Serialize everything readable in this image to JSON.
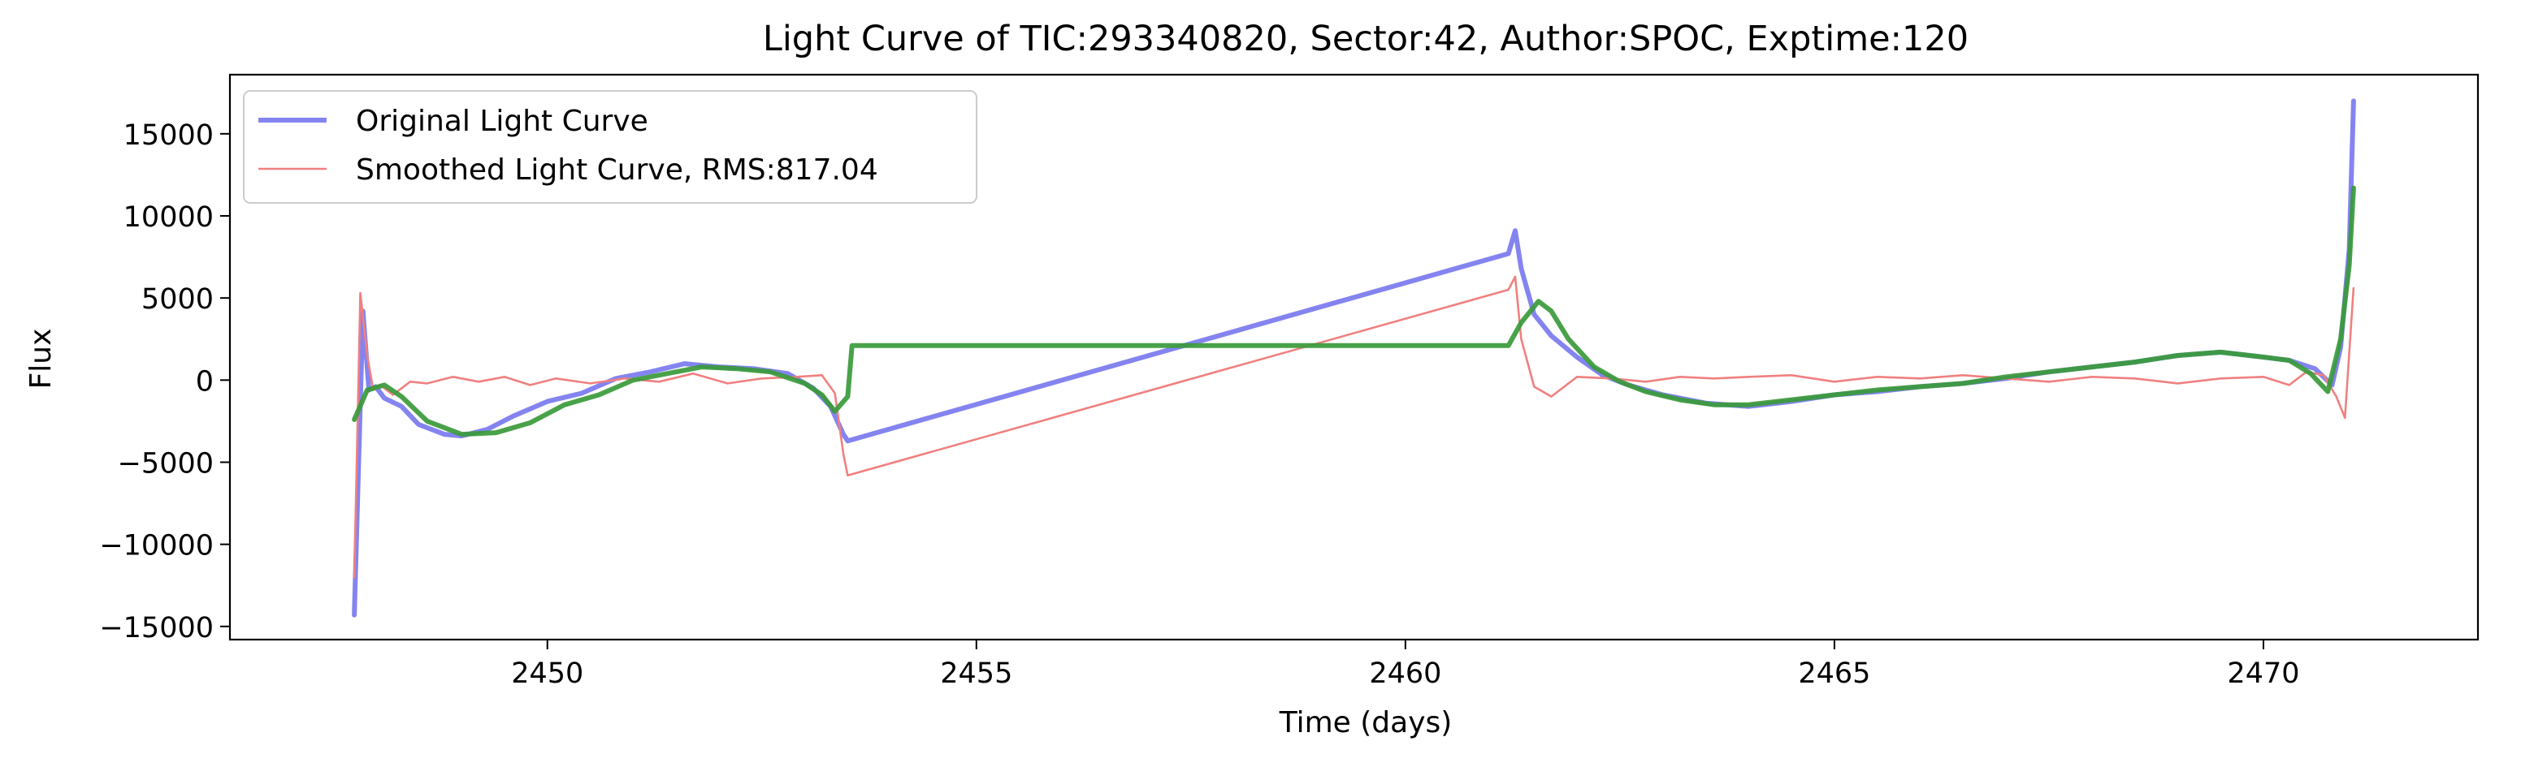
{
  "chart_data": {
    "type": "line",
    "title": "Light Curve of TIC:293340820, Sector:42, Author:SPOC, Exptime:120",
    "xlabel": "Time (days)",
    "ylabel": "Flux",
    "xlim": [
      2446.3,
      2472.5
    ],
    "ylim": [
      -15800,
      18600
    ],
    "x_ticks": [
      2450,
      2455,
      2460,
      2465,
      2470
    ],
    "x_tick_labels": [
      "2450",
      "2455",
      "2460",
      "2465",
      "2470"
    ],
    "y_ticks": [
      -15000,
      -10000,
      -5000,
      0,
      5000,
      10000,
      15000
    ],
    "y_tick_labels": [
      "−15000",
      "−10000",
      "−5000",
      "0",
      "5000",
      "10000",
      "15000"
    ],
    "grid": false,
    "legend_position": "upper-left",
    "legend": [
      {
        "label": "Original Light Curve",
        "color": "#7777ee",
        "series": 0
      },
      {
        "label": "Smoothed Light Curve, RMS:817.04",
        "color": "#f08080",
        "series": 1
      }
    ],
    "series": [
      {
        "name": "Original Light Curve",
        "color": "#7777ee",
        "x": [
          2447.75,
          2447.85,
          2447.92,
          2448.0,
          2448.1,
          2448.3,
          2448.5,
          2448.8,
          2449.0,
          2449.3,
          2449.6,
          2450.0,
          2450.4,
          2450.8,
          2451.2,
          2451.6,
          2452.0,
          2452.4,
          2452.8,
          2453.1,
          2453.3,
          2453.45,
          2453.5,
          2461.2,
          2461.28,
          2461.35,
          2461.5,
          2461.7,
          2462.0,
          2462.3,
          2462.6,
          2463.0,
          2463.5,
          2464.0,
          2464.5,
          2465.0,
          2465.5,
          2466.0,
          2466.5,
          2467.0,
          2467.5,
          2468.0,
          2468.5,
          2469.0,
          2469.5,
          2470.0,
          2470.3,
          2470.6,
          2470.8,
          2470.9,
          2471.0,
          2471.05
        ],
        "y": [
          -14300,
          4200,
          -600,
          -400,
          -1100,
          -1600,
          -2700,
          -3300,
          -3400,
          -3000,
          -2200,
          -1300,
          -800,
          100,
          500,
          1000,
          800,
          700,
          400,
          -500,
          -1600,
          -3300,
          -3700,
          7700,
          9100,
          6800,
          4000,
          2700,
          1400,
          300,
          -300,
          -900,
          -1400,
          -1600,
          -1300,
          -900,
          -700,
          -400,
          -200,
          100,
          500,
          800,
          1100,
          1500,
          1700,
          1400,
          1200,
          700,
          -300,
          2000,
          8000,
          17000
        ]
      },
      {
        "name": "Smoothed Light Curve, RMS:817.04",
        "color": "#f08080",
        "x": [
          2447.75,
          2447.82,
          2447.9,
          2447.97,
          2448.05,
          2448.2,
          2448.4,
          2448.6,
          2448.9,
          2449.2,
          2449.5,
          2449.8,
          2450.1,
          2450.5,
          2450.9,
          2451.3,
          2451.7,
          2452.1,
          2452.5,
          2452.9,
          2453.2,
          2453.35,
          2453.45,
          2453.5,
          2461.2,
          2461.28,
          2461.35,
          2461.5,
          2461.7,
          2462.0,
          2462.4,
          2462.8,
          2463.2,
          2463.6,
          2464.0,
          2464.5,
          2465.0,
          2465.5,
          2466.0,
          2466.5,
          2467.0,
          2467.5,
          2468.0,
          2468.5,
          2469.0,
          2469.5,
          2470.0,
          2470.3,
          2470.5,
          2470.7,
          2470.85,
          2470.95,
          2471.05
        ],
        "y": [
          -12000,
          5300,
          1500,
          -600,
          -300,
          -900,
          -100,
          -200,
          200,
          -100,
          200,
          -300,
          100,
          -200,
          100,
          -100,
          400,
          -200,
          100,
          200,
          300,
          -800,
          -4500,
          -5800,
          5500,
          6300,
          2500,
          -400,
          -1000,
          200,
          100,
          -100,
          200,
          100,
          200,
          300,
          -100,
          200,
          100,
          300,
          100,
          -100,
          200,
          100,
          -200,
          100,
          200,
          -300,
          500,
          300,
          -1000,
          -2300,
          5600
        ]
      },
      {
        "name": "",
        "color": "#3a9a3a",
        "x": [
          2447.75,
          2447.9,
          2448.1,
          2448.3,
          2448.6,
          2449.0,
          2449.4,
          2449.8,
          2450.2,
          2450.6,
          2451.0,
          2451.4,
          2451.8,
          2452.2,
          2452.6,
          2453.0,
          2453.2,
          2453.35,
          2453.5,
          2453.55,
          2461.2,
          2461.35,
          2461.55,
          2461.7,
          2461.9,
          2462.2,
          2462.5,
          2462.8,
          2463.2,
          2463.6,
          2464.0,
          2464.5,
          2465.0,
          2465.5,
          2466.0,
          2466.5,
          2467.0,
          2467.5,
          2468.0,
          2468.5,
          2469.0,
          2469.5,
          2470.0,
          2470.3,
          2470.55,
          2470.75,
          2470.9,
          2471.0,
          2471.05
        ],
        "y": [
          -2400,
          -600,
          -300,
          -1000,
          -2500,
          -3300,
          -3200,
          -2600,
          -1500,
          -900,
          0,
          400,
          800,
          700,
          500,
          -200,
          -900,
          -1900,
          -1000,
          2100,
          2100,
          3500,
          4800,
          4200,
          2500,
          800,
          -100,
          -700,
          -1200,
          -1500,
          -1500,
          -1200,
          -900,
          -600,
          -400,
          -200,
          200,
          500,
          800,
          1100,
          1500,
          1700,
          1400,
          1200,
          400,
          -700,
          2500,
          7000,
          11700
        ]
      }
    ]
  }
}
